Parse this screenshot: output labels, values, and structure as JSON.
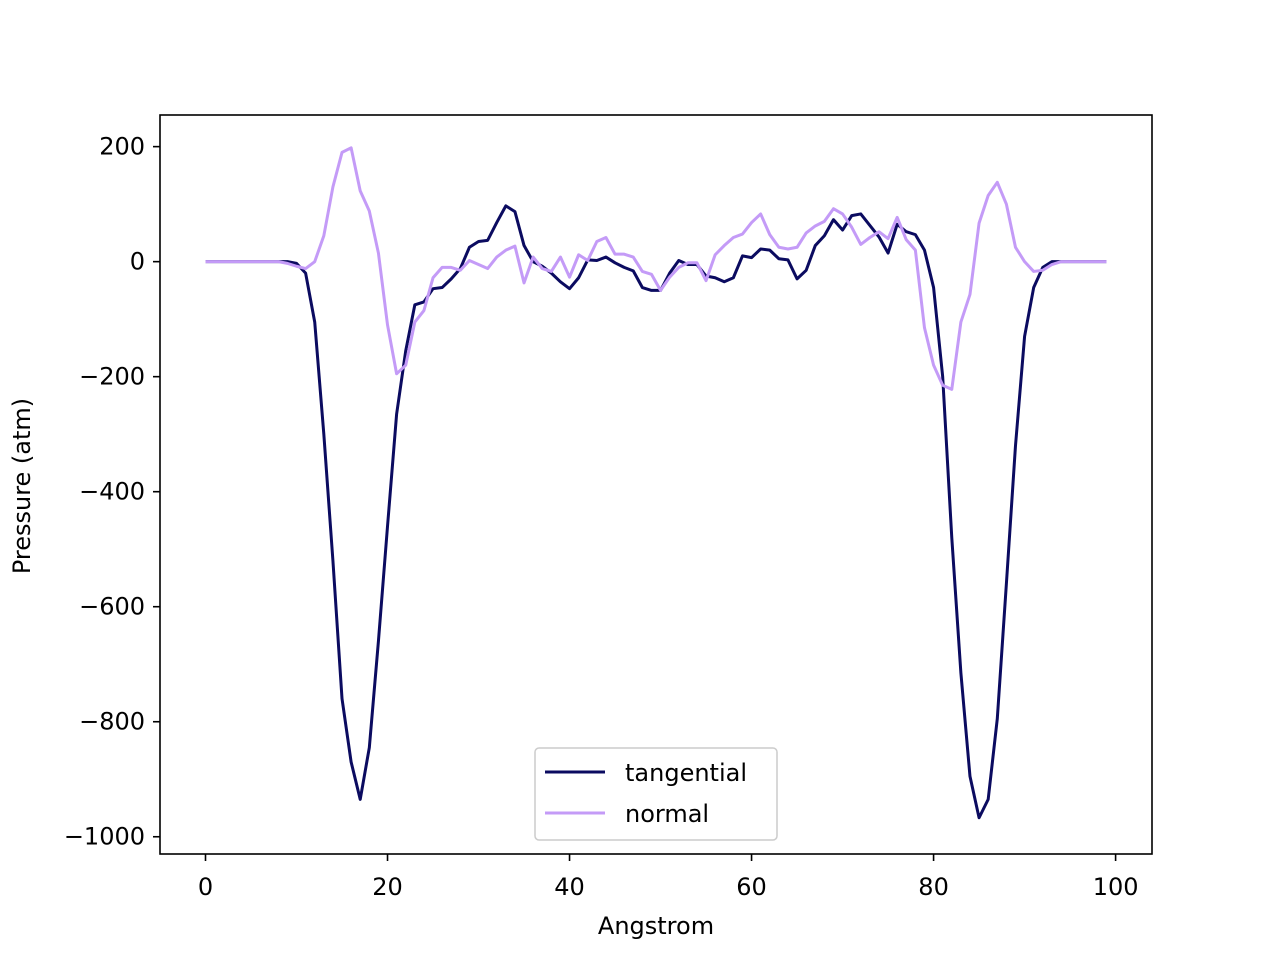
{
  "chart_data": {
    "type": "line",
    "title": "",
    "xlabel": "Angstrom",
    "ylabel": "Pressure (atm)",
    "xlim": [
      -5,
      104
    ],
    "ylim": [
      -1030,
      255
    ],
    "xticks": [
      0,
      20,
      40,
      60,
      80,
      100
    ],
    "yticks": [
      200,
      0,
      -200,
      -400,
      -600,
      -800,
      -1000
    ],
    "xtick_labels": [
      "0",
      "20",
      "40",
      "60",
      "80",
      "100"
    ],
    "ytick_labels": [
      "200",
      "0",
      "−200",
      "−400",
      "−600",
      "−800",
      "−1000"
    ],
    "grid": false,
    "legend_position": "bottom-center",
    "series": [
      {
        "name": "tangential",
        "color": "#0b0b60",
        "x": [
          0,
          1,
          2,
          3,
          4,
          5,
          6,
          7,
          8,
          9,
          10,
          11,
          12,
          13,
          14,
          15,
          16,
          17,
          18,
          19,
          20,
          21,
          22,
          23,
          24,
          25,
          26,
          27,
          28,
          29,
          30,
          31,
          32,
          33,
          34,
          35,
          36,
          37,
          38,
          39,
          40,
          41,
          42,
          43,
          44,
          45,
          46,
          47,
          48,
          49,
          50,
          51,
          52,
          53,
          54,
          55,
          56,
          57,
          58,
          59,
          60,
          61,
          62,
          63,
          64,
          65,
          66,
          67,
          68,
          69,
          70,
          71,
          72,
          73,
          74,
          75,
          76,
          77,
          78,
          79,
          80,
          81,
          82,
          83,
          84,
          85,
          86,
          87,
          88,
          89,
          90,
          91,
          92,
          93,
          94,
          95,
          96,
          97,
          98,
          99
        ],
        "y": [
          0,
          0,
          0,
          0,
          0,
          0,
          0,
          0,
          0,
          0,
          -3,
          -20,
          -105,
          -300,
          -520,
          -760,
          -870,
          -935,
          -845,
          -660,
          -460,
          -265,
          -155,
          -75,
          -70,
          -47,
          -45,
          -30,
          -12,
          25,
          35,
          37,
          68,
          97,
          87,
          28,
          0,
          -8,
          -20,
          -35,
          -47,
          -28,
          3,
          2,
          8,
          -2,
          -10,
          -16,
          -45,
          -50,
          -50,
          -20,
          2,
          -5,
          -5,
          -25,
          -28,
          -35,
          -28,
          10,
          7,
          22,
          20,
          5,
          3,
          -30,
          -15,
          28,
          45,
          73,
          55,
          80,
          83,
          63,
          43,
          15,
          65,
          52,
          47,
          20,
          -45,
          -200,
          -480,
          -715,
          -895,
          -967,
          -935,
          -795,
          -560,
          -320,
          -130,
          -45,
          -10,
          0,
          0,
          0,
          0,
          0,
          0,
          0
        ]
      },
      {
        "name": "normal",
        "color": "#c49bf7",
        "x": [
          0,
          1,
          2,
          3,
          4,
          5,
          6,
          7,
          8,
          9,
          10,
          11,
          12,
          13,
          14,
          15,
          16,
          17,
          18,
          19,
          20,
          21,
          22,
          23,
          24,
          25,
          26,
          27,
          28,
          29,
          30,
          31,
          32,
          33,
          34,
          35,
          36,
          37,
          38,
          39,
          40,
          41,
          42,
          43,
          44,
          45,
          46,
          47,
          48,
          49,
          50,
          51,
          52,
          53,
          54,
          55,
          56,
          57,
          58,
          59,
          60,
          61,
          62,
          63,
          64,
          65,
          66,
          67,
          68,
          69,
          70,
          71,
          72,
          73,
          74,
          75,
          76,
          77,
          78,
          79,
          80,
          81,
          82,
          83,
          84,
          85,
          86,
          87,
          88,
          89,
          90,
          91,
          92,
          93,
          94,
          95,
          96,
          97,
          98,
          99
        ],
        "y": [
          0,
          0,
          0,
          0,
          0,
          0,
          0,
          0,
          0,
          -3,
          -8,
          -12,
          0,
          45,
          130,
          190,
          198,
          123,
          88,
          15,
          -110,
          -195,
          -180,
          -105,
          -85,
          -28,
          -10,
          -10,
          -15,
          2,
          -5,
          -12,
          8,
          20,
          27,
          -37,
          8,
          -12,
          -17,
          8,
          -27,
          12,
          2,
          35,
          42,
          13,
          13,
          8,
          -17,
          -22,
          -50,
          -27,
          -10,
          -2,
          -2,
          -33,
          12,
          28,
          42,
          48,
          68,
          83,
          47,
          25,
          22,
          25,
          50,
          62,
          70,
          92,
          83,
          60,
          30,
          42,
          52,
          40,
          77,
          38,
          20,
          -115,
          -180,
          -215,
          -222,
          -105,
          -57,
          67,
          115,
          138,
          100,
          25,
          0,
          -17,
          -15,
          -5,
          0,
          0,
          0,
          0,
          0,
          0
        ]
      }
    ]
  }
}
